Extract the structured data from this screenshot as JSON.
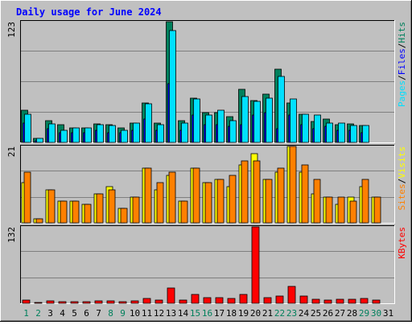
{
  "title": "Daily usage for June 2024",
  "colors": {
    "background": "#c0c0c0",
    "plot_bg": "#c0c0c0",
    "grid": "#7f7f7f",
    "title": "#0000ff",
    "hits": "#00805c",
    "files": "#0000ff",
    "pages": "#00e0ff",
    "visits": "#ffff00",
    "sites": "#ff8000",
    "kbytes": "#ff0000",
    "weekend_label": "#00805c",
    "weekday_label": "#000000",
    "slash": "#000000"
  },
  "chart_data": [
    {
      "type": "bar",
      "title": "Daily usage for June 2024",
      "max_label": "123",
      "legend": [
        {
          "name": "Pages",
          "color": "#00e0ff"
        },
        {
          "name": "Files",
          "color": "#0000ff"
        },
        {
          "name": "Hits",
          "color": "#00805c"
        }
      ],
      "categories": [
        "1",
        "2",
        "3",
        "4",
        "5",
        "6",
        "7",
        "8",
        "9",
        "10",
        "11",
        "12",
        "13",
        "14",
        "15",
        "16",
        "17",
        "18",
        "19",
        "20",
        "21",
        "22",
        "23",
        "24",
        "25",
        "26",
        "27",
        "28",
        "29",
        "30",
        "31"
      ],
      "ylim": [
        0,
        123
      ],
      "grid": true,
      "series": [
        {
          "name": "Hits",
          "color": "#00805c",
          "values": [
            33,
            4,
            22,
            18,
            15,
            15,
            19,
            18,
            15,
            20,
            40,
            20,
            123,
            22,
            45,
            30,
            30,
            26,
            54,
            43,
            49,
            75,
            40,
            29,
            21,
            24,
            18,
            19,
            17,
            0,
            0
          ]
        },
        {
          "name": "Files",
          "color": "#0000ff",
          "values": [
            20,
            2,
            14,
            10,
            10,
            10,
            12,
            10,
            10,
            12,
            24,
            12,
            60,
            12,
            28,
            18,
            18,
            16,
            18,
            28,
            30,
            14,
            28,
            18,
            14,
            16,
            12,
            12,
            10,
            0,
            0
          ]
        },
        {
          "name": "Pages",
          "color": "#00e0ff",
          "values": [
            29,
            4,
            19,
            12,
            15,
            15,
            18,
            17,
            12,
            20,
            39,
            18,
            114,
            20,
            44,
            28,
            33,
            22,
            47,
            42,
            45,
            67,
            44,
            29,
            28,
            20,
            20,
            17,
            17,
            0,
            0
          ]
        }
      ]
    },
    {
      "type": "bar",
      "max_label": "21",
      "legend": [
        {
          "name": "Sites",
          "color": "#ff8000"
        },
        {
          "name": "Visits",
          "color": "#ffff00"
        }
      ],
      "categories": [
        "1",
        "2",
        "3",
        "4",
        "5",
        "6",
        "7",
        "8",
        "9",
        "10",
        "11",
        "12",
        "13",
        "14",
        "15",
        "16",
        "17",
        "18",
        "19",
        "20",
        "21",
        "22",
        "23",
        "24",
        "25",
        "26",
        "27",
        "28",
        "29",
        "30",
        "31"
      ],
      "ylim": [
        0,
        21
      ],
      "grid": true,
      "series": [
        {
          "name": "Visits",
          "color": "#ffff00",
          "values": [
            11,
            1,
            9,
            6,
            6,
            5,
            8,
            10,
            4,
            7,
            15,
            9,
            13,
            6,
            15,
            11,
            12,
            10,
            16,
            19,
            12,
            14,
            21,
            14,
            8,
            7,
            5,
            7,
            10,
            7,
            0
          ]
        },
        {
          "name": "Sites",
          "color": "#ff8000",
          "values": [
            14,
            1,
            9,
            6,
            6,
            5,
            8,
            9,
            4,
            7,
            15,
            11,
            14,
            6,
            15,
            11,
            12,
            13,
            17,
            17,
            12,
            15,
            21,
            16,
            12,
            7,
            7,
            6,
            12,
            7,
            0
          ]
        }
      ]
    },
    {
      "type": "bar",
      "max_label": "132",
      "legend": [
        {
          "name": "KBytes",
          "color": "#ff0000"
        }
      ],
      "categories": [
        "1",
        "2",
        "3",
        "4",
        "5",
        "6",
        "7",
        "8",
        "9",
        "10",
        "11",
        "12",
        "13",
        "14",
        "15",
        "16",
        "17",
        "18",
        "19",
        "20",
        "21",
        "22",
        "23",
        "24",
        "25",
        "26",
        "27",
        "28",
        "29",
        "30",
        "31"
      ],
      "ylim": [
        0,
        132
      ],
      "grid": true,
      "series": [
        {
          "name": "KBytes",
          "color": "#ff0000",
          "values": [
            6,
            1,
            4,
            3,
            3,
            3,
            4,
            4,
            3,
            4,
            9,
            5,
            27,
            5,
            15,
            10,
            10,
            9,
            15,
            132,
            10,
            13,
            29,
            12,
            7,
            6,
            7,
            7,
            9,
            6,
            0
          ]
        }
      ]
    }
  ],
  "x_labels": [
    "1",
    "2",
    "3",
    "4",
    "5",
    "6",
    "7",
    "8",
    "9",
    "10",
    "11",
    "12",
    "13",
    "14",
    "15",
    "16",
    "17",
    "18",
    "19",
    "20",
    "21",
    "22",
    "23",
    "24",
    "25",
    "26",
    "27",
    "28",
    "29",
    "30",
    "31"
  ],
  "weekend_days": [
    "1",
    "2",
    "8",
    "9",
    "15",
    "16",
    "22",
    "23",
    "29",
    "30"
  ]
}
